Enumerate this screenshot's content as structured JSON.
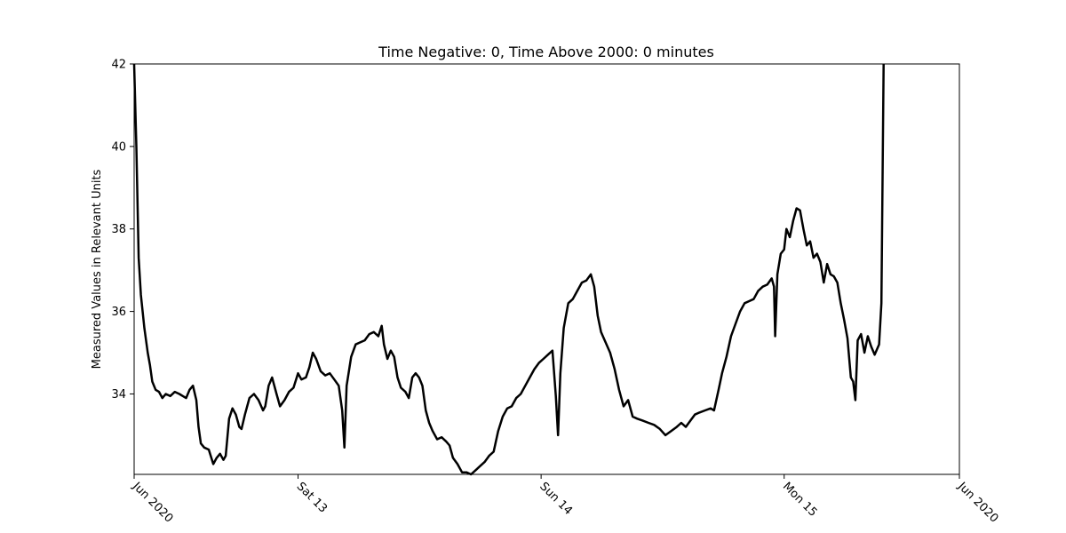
{
  "chart_data": {
    "type": "line",
    "title": "Time Negative: 0, Time Above 2000: 0 minutes",
    "xlabel": "",
    "ylabel": "Measured Values in Relevant Units",
    "x_range_hours": [
      0,
      73
    ],
    "ylim": [
      32.05,
      42.0
    ],
    "y_ticks": [
      34,
      36,
      38,
      40,
      42
    ],
    "x_ticks": [
      {
        "hour": 0,
        "label": "Jun 2020"
      },
      {
        "hour": 14.5,
        "label": "Sat 13"
      },
      {
        "hour": 36,
        "label": "Sun 14"
      },
      {
        "hour": 57.5,
        "label": "Mon 15"
      },
      {
        "hour": 73,
        "label": "Jun 2020"
      }
    ],
    "grid": false,
    "color": "#000000",
    "series": [
      {
        "points": [
          [
            0.0,
            42.0
          ],
          [
            0.2,
            40.0
          ],
          [
            0.4,
            37.3
          ],
          [
            0.6,
            36.4
          ],
          [
            0.9,
            35.6
          ],
          [
            1.2,
            35.0
          ],
          [
            1.4,
            34.7
          ],
          [
            1.6,
            34.3
          ],
          [
            1.9,
            34.1
          ],
          [
            2.2,
            34.05
          ],
          [
            2.5,
            33.9
          ],
          [
            2.8,
            34.0
          ],
          [
            3.2,
            33.95
          ],
          [
            3.6,
            34.05
          ],
          [
            4.0,
            34.0
          ],
          [
            4.3,
            33.95
          ],
          [
            4.6,
            33.9
          ],
          [
            4.9,
            34.1
          ],
          [
            5.2,
            34.2
          ],
          [
            5.5,
            33.85
          ],
          [
            5.7,
            33.2
          ],
          [
            5.9,
            32.8
          ],
          [
            6.2,
            32.7
          ],
          [
            6.6,
            32.65
          ],
          [
            7.0,
            32.3
          ],
          [
            7.3,
            32.45
          ],
          [
            7.6,
            32.55
          ],
          [
            7.9,
            32.4
          ],
          [
            8.1,
            32.5
          ],
          [
            8.4,
            33.4
          ],
          [
            8.7,
            33.65
          ],
          [
            9.0,
            33.5
          ],
          [
            9.3,
            33.2
          ],
          [
            9.5,
            33.15
          ],
          [
            9.8,
            33.5
          ],
          [
            10.2,
            33.9
          ],
          [
            10.6,
            34.0
          ],
          [
            11.0,
            33.85
          ],
          [
            11.4,
            33.6
          ],
          [
            11.6,
            33.7
          ],
          [
            11.9,
            34.2
          ],
          [
            12.2,
            34.4
          ],
          [
            12.6,
            34.0
          ],
          [
            12.9,
            33.7
          ],
          [
            13.3,
            33.85
          ],
          [
            13.7,
            34.05
          ],
          [
            14.1,
            34.15
          ],
          [
            14.5,
            34.5
          ],
          [
            14.8,
            34.35
          ],
          [
            15.2,
            34.4
          ],
          [
            15.5,
            34.65
          ],
          [
            15.8,
            35.0
          ],
          [
            16.1,
            34.85
          ],
          [
            16.5,
            34.55
          ],
          [
            16.9,
            34.45
          ],
          [
            17.3,
            34.5
          ],
          [
            17.7,
            34.35
          ],
          [
            18.1,
            34.2
          ],
          [
            18.4,
            33.6
          ],
          [
            18.6,
            32.7
          ],
          [
            18.8,
            34.2
          ],
          [
            19.2,
            34.9
          ],
          [
            19.6,
            35.2
          ],
          [
            20.0,
            35.25
          ],
          [
            20.4,
            35.3
          ],
          [
            20.8,
            35.45
          ],
          [
            21.2,
            35.5
          ],
          [
            21.6,
            35.4
          ],
          [
            21.9,
            35.65
          ],
          [
            22.1,
            35.2
          ],
          [
            22.4,
            34.85
          ],
          [
            22.7,
            35.05
          ],
          [
            23.0,
            34.9
          ],
          [
            23.3,
            34.4
          ],
          [
            23.6,
            34.15
          ],
          [
            24.0,
            34.05
          ],
          [
            24.3,
            33.9
          ],
          [
            24.6,
            34.4
          ],
          [
            24.9,
            34.5
          ],
          [
            25.2,
            34.4
          ],
          [
            25.5,
            34.2
          ],
          [
            25.8,
            33.6
          ],
          [
            26.1,
            33.3
          ],
          [
            26.4,
            33.1
          ],
          [
            26.8,
            32.9
          ],
          [
            27.2,
            32.95
          ],
          [
            27.6,
            32.85
          ],
          [
            27.9,
            32.75
          ],
          [
            28.2,
            32.45
          ],
          [
            28.6,
            32.3
          ],
          [
            29.0,
            32.1
          ],
          [
            29.4,
            32.1
          ],
          [
            29.8,
            32.05
          ],
          [
            30.2,
            32.15
          ],
          [
            30.6,
            32.25
          ],
          [
            31.0,
            32.35
          ],
          [
            31.4,
            32.5
          ],
          [
            31.8,
            32.6
          ],
          [
            32.2,
            33.1
          ],
          [
            32.6,
            33.45
          ],
          [
            33.0,
            33.65
          ],
          [
            33.4,
            33.7
          ],
          [
            33.8,
            33.9
          ],
          [
            34.2,
            34.0
          ],
          [
            34.6,
            34.2
          ],
          [
            35.0,
            34.4
          ],
          [
            35.4,
            34.6
          ],
          [
            35.8,
            34.75
          ],
          [
            36.2,
            34.85
          ],
          [
            36.6,
            34.95
          ],
          [
            37.0,
            35.05
          ],
          [
            37.3,
            33.95
          ],
          [
            37.5,
            33.0
          ],
          [
            37.7,
            34.5
          ],
          [
            38.0,
            35.6
          ],
          [
            38.4,
            36.2
          ],
          [
            38.8,
            36.3
          ],
          [
            39.2,
            36.5
          ],
          [
            39.6,
            36.7
          ],
          [
            40.0,
            36.75
          ],
          [
            40.4,
            36.9
          ],
          [
            40.7,
            36.6
          ],
          [
            41.0,
            35.9
          ],
          [
            41.3,
            35.5
          ],
          [
            41.7,
            35.25
          ],
          [
            42.1,
            35.0
          ],
          [
            42.5,
            34.6
          ],
          [
            42.9,
            34.1
          ],
          [
            43.3,
            33.7
          ],
          [
            43.7,
            33.85
          ],
          [
            44.1,
            33.45
          ],
          [
            44.5,
            33.4
          ],
          [
            45.0,
            33.35
          ],
          [
            45.5,
            33.3
          ],
          [
            46.0,
            33.25
          ],
          [
            46.5,
            33.15
          ],
          [
            47.0,
            33.0
          ],
          [
            47.5,
            33.1
          ],
          [
            48.0,
            33.2
          ],
          [
            48.4,
            33.3
          ],
          [
            48.8,
            33.2
          ],
          [
            49.2,
            33.35
          ],
          [
            49.6,
            33.5
          ],
          [
            50.0,
            33.55
          ],
          [
            50.5,
            33.6
          ],
          [
            51.0,
            33.65
          ],
          [
            51.3,
            33.6
          ],
          [
            51.7,
            34.1
          ],
          [
            52.0,
            34.5
          ],
          [
            52.4,
            34.9
          ],
          [
            52.8,
            35.4
          ],
          [
            53.2,
            35.7
          ],
          [
            53.6,
            36.0
          ],
          [
            54.0,
            36.2
          ],
          [
            54.4,
            36.25
          ],
          [
            54.8,
            36.3
          ],
          [
            55.2,
            36.5
          ],
          [
            55.6,
            36.6
          ],
          [
            56.0,
            36.65
          ],
          [
            56.4,
            36.8
          ],
          [
            56.6,
            36.6
          ],
          [
            56.7,
            35.4
          ],
          [
            56.9,
            36.9
          ],
          [
            57.2,
            37.4
          ],
          [
            57.5,
            37.5
          ],
          [
            57.7,
            38.0
          ],
          [
            58.0,
            37.8
          ],
          [
            58.3,
            38.2
          ],
          [
            58.6,
            38.5
          ],
          [
            58.9,
            38.45
          ],
          [
            59.2,
            38.0
          ],
          [
            59.5,
            37.6
          ],
          [
            59.8,
            37.7
          ],
          [
            60.1,
            37.3
          ],
          [
            60.4,
            37.4
          ],
          [
            60.7,
            37.2
          ],
          [
            61.0,
            36.7
          ],
          [
            61.3,
            37.15
          ],
          [
            61.6,
            36.9
          ],
          [
            61.9,
            36.85
          ],
          [
            62.2,
            36.7
          ],
          [
            62.5,
            36.2
          ],
          [
            62.8,
            35.8
          ],
          [
            63.1,
            35.35
          ],
          [
            63.4,
            34.4
          ],
          [
            63.6,
            34.3
          ],
          [
            63.8,
            33.85
          ],
          [
            64.0,
            35.3
          ],
          [
            64.3,
            35.45
          ],
          [
            64.6,
            35.0
          ],
          [
            64.9,
            35.4
          ],
          [
            65.2,
            35.15
          ],
          [
            65.5,
            34.95
          ],
          [
            65.9,
            35.2
          ],
          [
            66.1,
            36.2
          ],
          [
            66.3,
            42.0
          ]
        ]
      }
    ]
  }
}
